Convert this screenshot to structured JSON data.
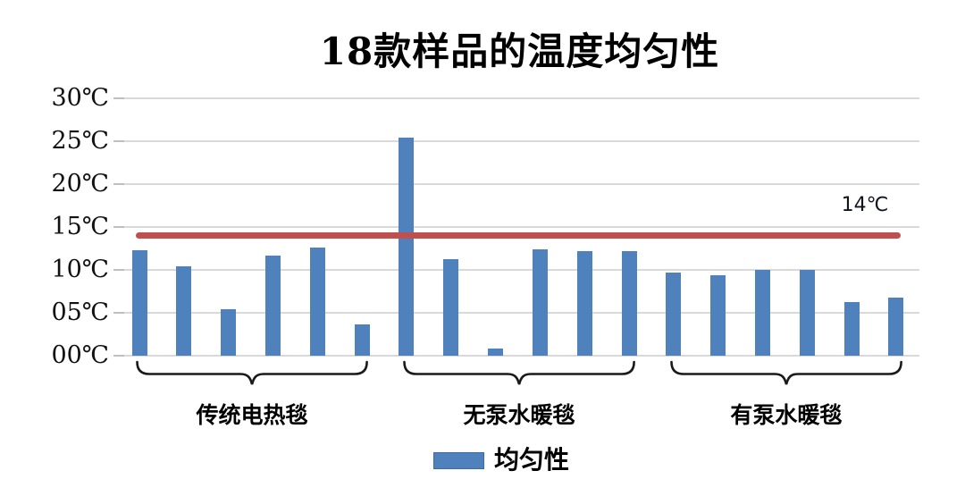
{
  "chart_data": {
    "type": "bar",
    "title": "18款样品的温度均匀性",
    "ylabel": "",
    "ylim": [
      0,
      30
    ],
    "yticks": [
      0,
      5,
      10,
      15,
      20,
      25,
      30
    ],
    "ytick_labels": [
      "00℃",
      "05℃",
      "10℃",
      "15℃",
      "20℃",
      "25℃",
      "30℃"
    ],
    "grid": "horizontal",
    "bar_color": "#4f81bd",
    "gridline_color": "#d9d9d9",
    "categories": [
      "传统电热毯",
      "无泵水暖毯",
      "有泵水暖毯"
    ],
    "groups": [
      {
        "label": "传统电热毯",
        "values": [
          12.3,
          10.4,
          5.4,
          11.7,
          12.6,
          3.6
        ]
      },
      {
        "label": "无泵水暖毯",
        "values": [
          25.4,
          11.3,
          0.8,
          12.4,
          12.2,
          12.2
        ]
      },
      {
        "label": "有泵水暖毯",
        "values": [
          9.7,
          9.4,
          10.0,
          10.0,
          6.2,
          6.8
        ]
      }
    ],
    "reference_line": {
      "value": 14,
      "label": "14℃",
      "color": "#c0504d"
    },
    "legend": {
      "label": "均匀性",
      "swatch_color": "#4f81bd",
      "position": "bottom"
    }
  }
}
